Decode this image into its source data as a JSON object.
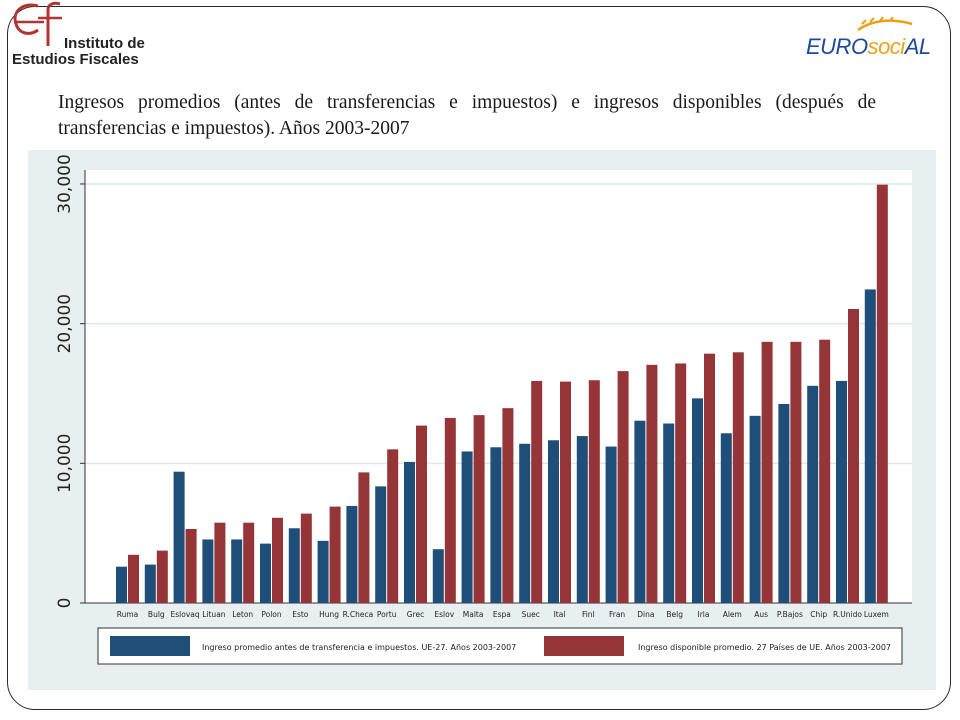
{
  "logos": {
    "ief": {
      "line1": "Instituto de",
      "line2": "Estudios Fiscales"
    },
    "eurosocial": {
      "part1": "EURO",
      "part2": "soci",
      "part3": "AL"
    }
  },
  "title": "Ingresos promedios (antes de transferencias e impuestos) e ingresos disponibles (después de transferencias e impuestos). Años 2003-2007",
  "chart_data": {
    "type": "bar",
    "categories": [
      "Ruma",
      "Bulg",
      "Eslovaq",
      "Lituan",
      "Leton",
      "Polon",
      "Esto",
      "Hung",
      "R.Checa",
      "Portu",
      "Grec",
      "Eslov",
      "Malta",
      "Espa",
      "Suec",
      "Ital",
      "Finl",
      "Fran",
      "Dina",
      "Belg",
      "Irla",
      "Alem",
      "Aus",
      "P.Bajos",
      "Chip",
      "R.Unido",
      "Luxem"
    ],
    "series": [
      {
        "name": "Ingreso promedio antes de transferencia e impuestos. UE-27. Años 2003-2007",
        "color": "#1f4e79",
        "values": [
          2600,
          2750,
          9400,
          4550,
          4550,
          4250,
          5350,
          4450,
          6950,
          8350,
          10100,
          3850,
          10850,
          11150,
          11400,
          11650,
          11950,
          11200,
          13050,
          12850,
          14650,
          12150,
          13400,
          14250,
          15550,
          15900,
          22450
        ]
      },
      {
        "name": "Ingreso disponible promedio. 27 Países de UE. Años 2003-2007",
        "color": "#953537",
        "values": [
          3450,
          3750,
          5300,
          5750,
          5750,
          6100,
          6400,
          6900,
          9350,
          11000,
          12700,
          13250,
          13450,
          13950,
          15900,
          15850,
          15950,
          16600,
          17050,
          17150,
          17850,
          17950,
          18700,
          18700,
          18850,
          21050,
          29950
        ]
      }
    ],
    "yticks": [
      0,
      10000,
      20000,
      30000
    ],
    "ytick_labels": [
      "0",
      "10,000",
      "20,000",
      "30,000"
    ],
    "ylim": [
      0,
      31000
    ],
    "grid": true,
    "legend_position": "bottom"
  }
}
